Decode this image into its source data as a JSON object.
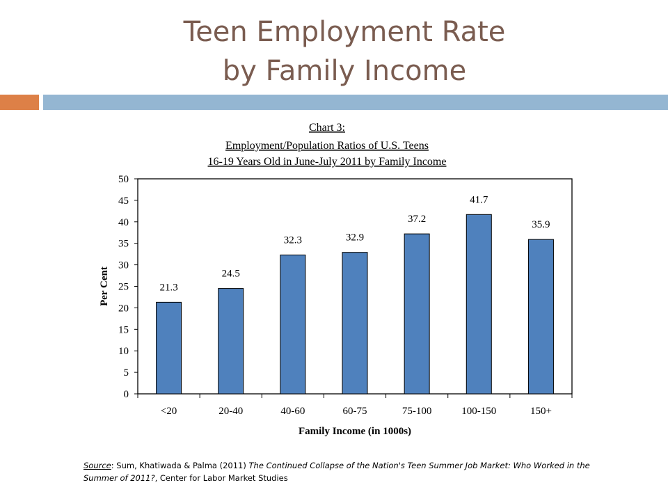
{
  "slide": {
    "title_line1": "Teen Employment Rate",
    "title_line2": "by Family Income",
    "accent_colors": {
      "title": "#7a5c50",
      "orange": "#dd8047",
      "blue": "#94b6d2"
    }
  },
  "chart_data": {
    "type": "bar",
    "title_lines": [
      "Chart 3:",
      "Employment/Population Ratios of U.S. Teens",
      "16-19 Years Old in June-July 2011 by Family Income"
    ],
    "categories": [
      "<20",
      "20-40",
      "40-60",
      "60-75",
      "75-100",
      "100-150",
      "150+"
    ],
    "values": [
      21.3,
      24.5,
      32.3,
      32.9,
      37.2,
      41.7,
      35.9
    ],
    "data_labels": [
      "21.3",
      "24.5",
      "32.3",
      "32.9",
      "37.2",
      "41.7",
      "35.9"
    ],
    "xlabel": "Family Income (in 1000s)",
    "ylabel": "Per Cent",
    "ylim": [
      0,
      50
    ],
    "yticks": [
      0,
      5,
      10,
      15,
      20,
      25,
      30,
      35,
      40,
      45,
      50
    ],
    "grid": false,
    "bar_color": "#4f81bd"
  },
  "source": {
    "label": "Source",
    "authors": ": Sum, Khatiwada & Palma (2011) ",
    "work": "The Continued Collapse of the Nation's Teen Summer Job Market: Who Worked in the Summer of 2011?",
    "publisher": ", Center for Labor Market Studies"
  }
}
